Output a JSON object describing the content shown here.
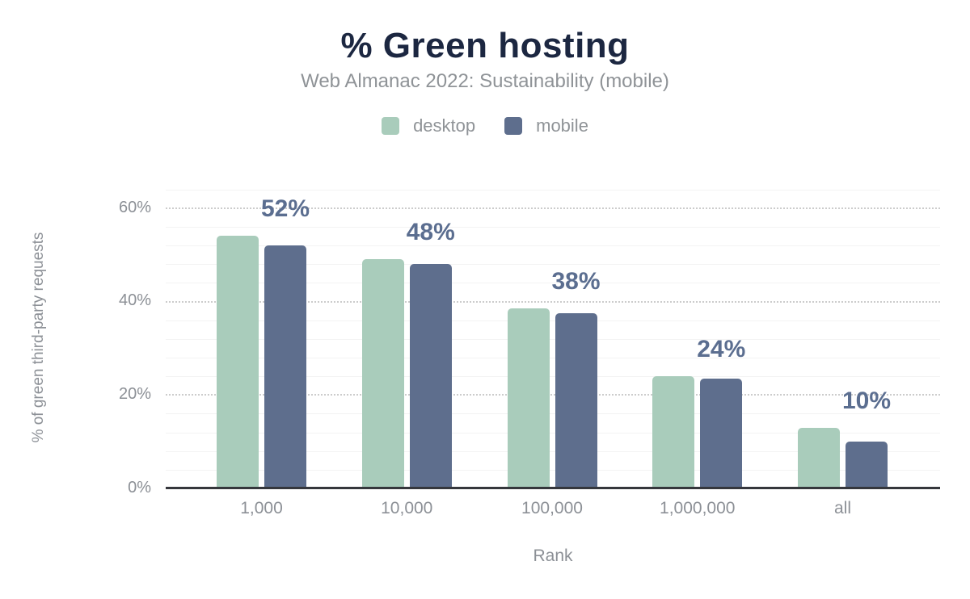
{
  "header": {
    "title": "% Green hosting",
    "subtitle": "Web Almanac 2022: Sustainability (mobile)"
  },
  "legend": {
    "position": "top",
    "items": [
      {
        "label": "desktop",
        "color": "#a9ccbb"
      },
      {
        "label": "mobile",
        "color": "#5e6e8d"
      }
    ]
  },
  "chart_data": {
    "type": "bar",
    "title": "% Green hosting",
    "subtitle": "Web Almanac 2022: Sustainability (mobile)",
    "categories": [
      "1,000",
      "10,000",
      "100,000",
      "1,000,000",
      "all"
    ],
    "series": [
      {
        "name": "desktop",
        "color": "#a9ccbb",
        "values": [
          54,
          49,
          38.5,
          24,
          13
        ]
      },
      {
        "name": "mobile",
        "color": "#5e6e8d",
        "values": [
          52,
          48,
          37.5,
          23.5,
          10
        ]
      }
    ],
    "bar_labels": [
      "52%",
      "48%",
      "38%",
      "24%",
      "10%"
    ],
    "bar_label_series": "mobile",
    "xlabel": "Rank",
    "ylabel": "% of green third-party requests",
    "ylim": [
      0,
      66
    ],
    "yticks": [
      {
        "value": 0,
        "label": "0%"
      },
      {
        "value": 20,
        "label": "20%"
      },
      {
        "value": 40,
        "label": "40%"
      },
      {
        "value": 60,
        "label": "60%"
      }
    ],
    "grid": {
      "major_every": 20,
      "major_style": "dotted",
      "minor_every": 4,
      "minor_style": "solid"
    },
    "legend_position": "top",
    "colors": {
      "title": "#1c2741",
      "subtitle": "#8f9397",
      "axis_text": "#8c9096",
      "data_label": "#5b6e90",
      "axis_line": "#35373c",
      "grid_major": "#cccccc",
      "grid_minor": "#f3f3f3"
    }
  }
}
